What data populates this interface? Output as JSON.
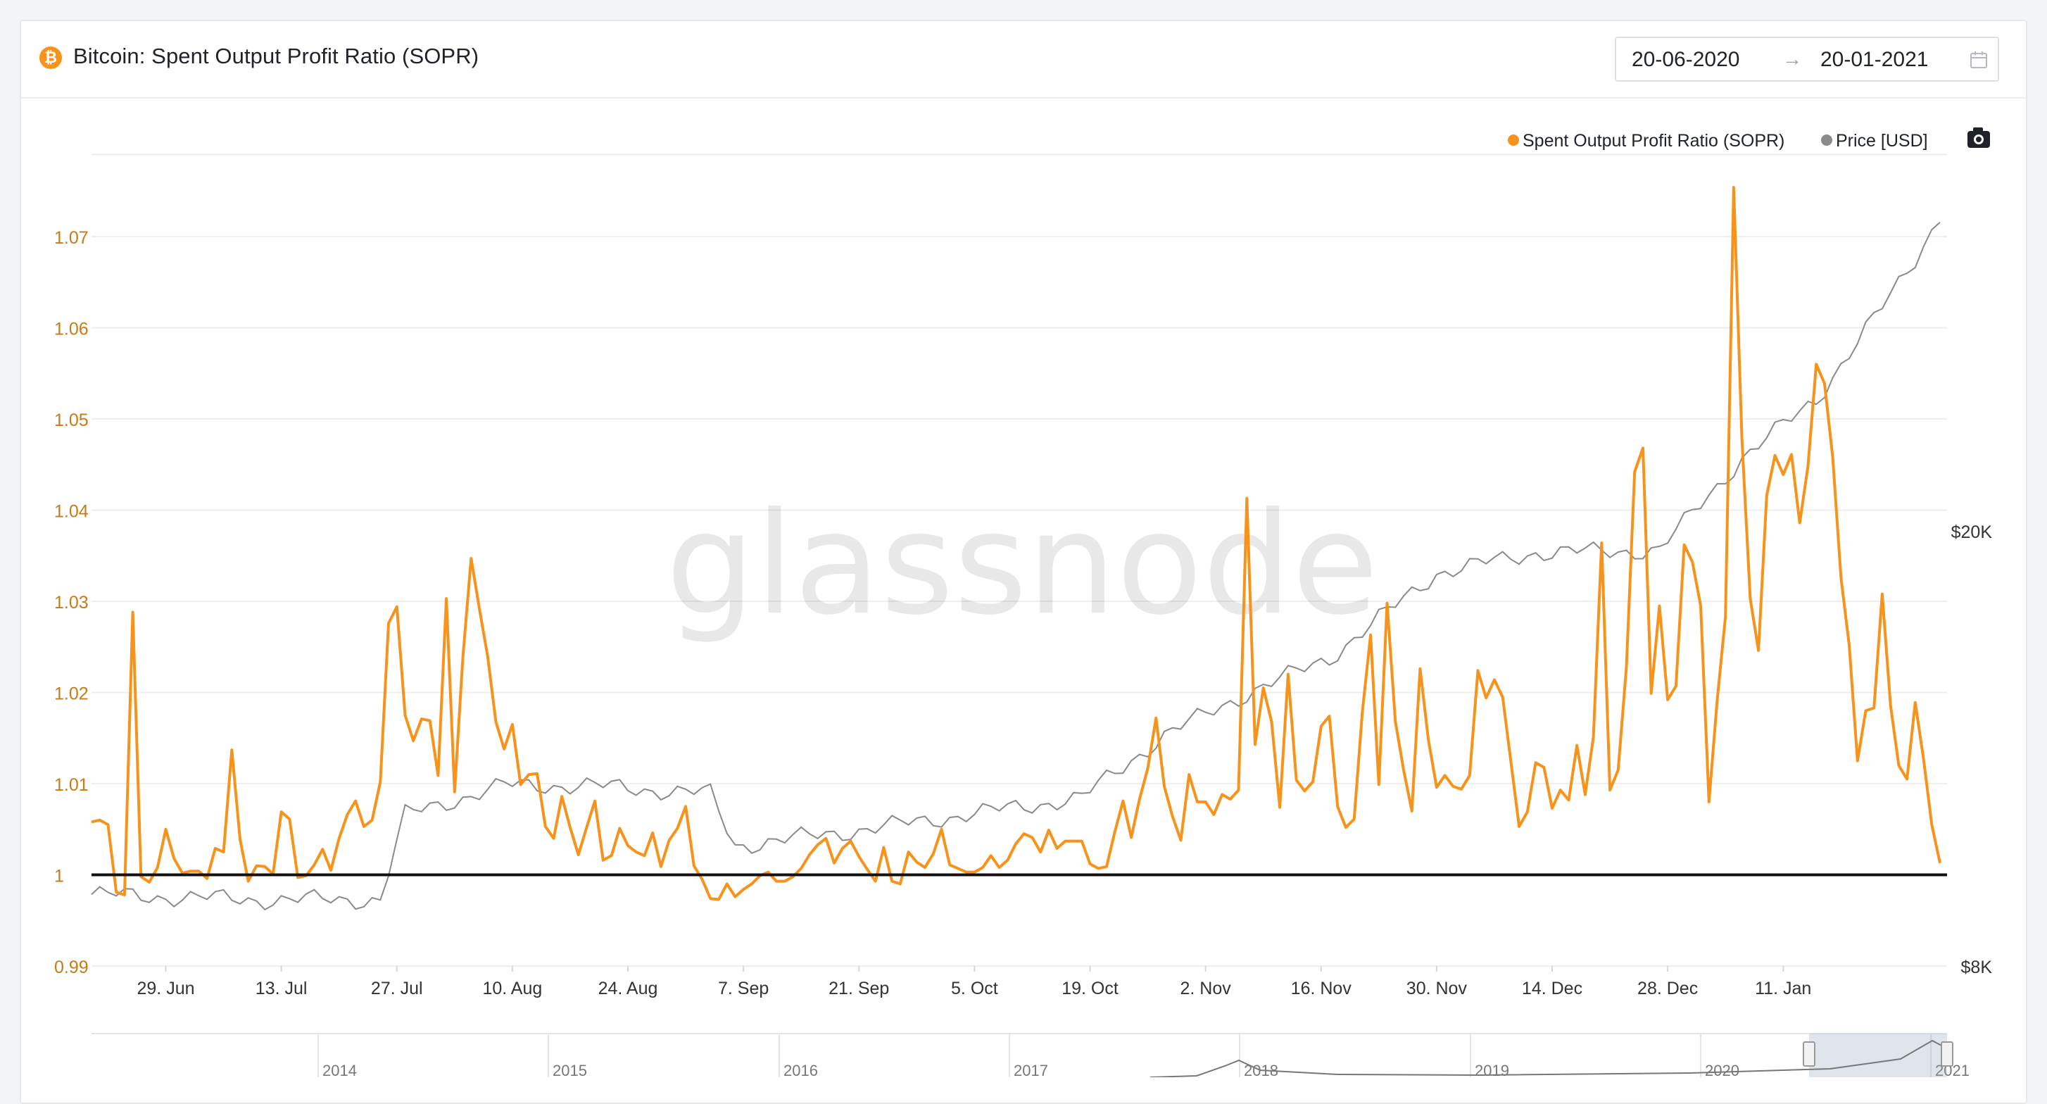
{
  "header": {
    "title": "Bitcoin: Spent Output Profit Ratio (SOPR)",
    "coin_symbol": "₿",
    "date_from": "20-06-2020",
    "date_arrow": "→",
    "date_to": "20-01-2021"
  },
  "watermark": "glassnode",
  "colors": {
    "sopr": "#f7931a",
    "price": "#8a8a8a",
    "baseline": "#111111",
    "grid": "#eeeeee"
  },
  "chart_data": {
    "type": "line",
    "legend": [
      {
        "name": "Spent Output Profit Ratio (SOPR)",
        "color": "#f7931a"
      },
      {
        "name": "Price [USD]",
        "color": "#8a8a8a"
      }
    ],
    "legend_position": "top-right",
    "x_ticks": [
      "29. Jun",
      "13. Jul",
      "27. Jul",
      "10. Aug",
      "24. Aug",
      "7. Sep",
      "21. Sep",
      "5. Oct",
      "19. Oct",
      "2. Nov",
      "16. Nov",
      "30. Nov",
      "14. Dec",
      "28. Dec",
      "11. Jan"
    ],
    "y_ticks_left": [
      "0.99",
      "1",
      "1.01",
      "1.02",
      "1.03",
      "1.04",
      "1.05",
      "1.06",
      "1.07"
    ],
    "y_ticks_right": [
      "$8K",
      "$20K"
    ],
    "ylim_left": [
      0.99,
      1.0795
    ],
    "ylim_right_usd": [
      8000,
      50000
    ],
    "ylog_right": true,
    "reference_line": 1,
    "grid": true,
    "sopr": [
      1.0058,
      1.006,
      1.0055,
      0.9981,
      0.9978,
      1.0288,
      0.9998,
      0.9992,
      1.0008,
      1.005,
      1.0018,
      1.0002,
      1.0004,
      1.0004,
      0.9996,
      1.0029,
      1.0025,
      1.0137,
      1.0039,
      0.9993,
      1.001,
      1.0009,
      1.0001,
      1.0069,
      1.0061,
      0.9997,
      0.9999,
      1.0011,
      1.0028,
      1.0005,
      1.004,
      1.0066,
      1.0081,
      1.0053,
      1.006,
      1.0102,
      1.0276,
      1.0294,
      1.0175,
      1.0147,
      1.0171,
      1.0169,
      1.0109,
      1.0303,
      1.0091,
      1.0238,
      1.0347,
      1.0292,
      1.024,
      1.0168,
      1.0138,
      1.0165,
      1.0099,
      1.011,
      1.0111,
      1.0053,
      1.004,
      1.0086,
      1.0052,
      1.0022,
      1.0052,
      1.0081,
      1.0016,
      1.0021,
      1.0051,
      1.0032,
      1.0025,
      1.0021,
      1.0046,
      1.0009,
      1.0038,
      1.0051,
      1.0075,
      1.001,
      0.9995,
      0.9974,
      0.9973,
      0.999,
      0.9976,
      0.9984,
      0.999,
      0.9999,
      1.0003,
      0.9993,
      0.9993,
      0.9998,
      1.0007,
      1.0022,
      1.0033,
      1.004,
      1.0013,
      1.0029,
      1.0037,
      1.002,
      1.0006,
      0.9993,
      1.003,
      0.9993,
      0.999,
      1.0025,
      1.0014,
      1.0008,
      1.0023,
      1.005,
      1.0011,
      1.0007,
      1.0003,
      1.0003,
      1.0008,
      1.0021,
      1.0008,
      1.0016,
      1.0034,
      1.0045,
      1.0041,
      1.0025,
      1.0049,
      1.0029,
      1.0037,
      1.0037,
      1.0037,
      1.0012,
      1.0007,
      1.0009,
      1.0047,
      1.0081,
      1.0041,
      1.0083,
      1.0117,
      1.0172,
      1.0097,
      1.0064,
      1.0038,
      1.011,
      1.008,
      1.008,
      1.0066,
      1.0088,
      1.0083,
      1.0093,
      1.0413,
      1.0143,
      1.0205,
      1.0168,
      1.0074,
      1.022,
      1.0104,
      1.0092,
      1.0102,
      1.0163,
      1.0174,
      1.0075,
      1.0052,
      1.0061,
      1.0179,
      1.0263,
      1.0099,
      1.0298,
      1.0168,
      1.0115,
      1.007,
      1.0226,
      1.0148,
      1.0096,
      1.0109,
      1.0097,
      1.0094,
      1.0109,
      1.0224,
      1.0194,
      1.0214,
      1.0195,
      1.0124,
      1.0053,
      1.0069,
      1.0123,
      1.0118,
      1.0073,
      1.0093,
      1.0082,
      1.0142,
      1.0088,
      1.0151,
      1.0364,
      1.0093,
      1.0115,
      1.0228,
      1.0442,
      1.0468,
      1.0199,
      1.0295,
      1.0192,
      1.0207,
      1.0362,
      1.0343,
      1.0295,
      1.008,
      1.0192,
      1.0283,
      1.0754,
      1.0478,
      1.0303,
      1.0246,
      1.0416,
      1.046,
      1.0439,
      1.0461,
      1.0386,
      1.0448,
      1.056,
      1.0539,
      1.0458,
      1.0326,
      1.0252,
      1.0125,
      1.018,
      1.0183,
      1.0308,
      1.0186,
      1.012,
      1.0105,
      1.0189,
      1.0127,
      1.0055,
      1.0013
    ]
  },
  "navigator": {
    "years": [
      "2014",
      "2015",
      "2016",
      "2017",
      "2018",
      "2019",
      "2020",
      "2021"
    ]
  }
}
